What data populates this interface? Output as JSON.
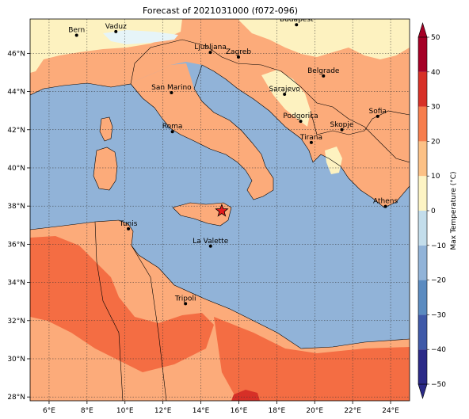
{
  "title": "Forecast of 2021031000 (f072-096)",
  "colorbar": {
    "label": "Max Temperature (°C)",
    "min": -50,
    "max": 50,
    "step": 10,
    "ticks": [
      "50",
      "40",
      "30",
      "20",
      "10",
      "0",
      "−10",
      "−20",
      "−30",
      "−40",
      "−50"
    ],
    "colors": [
      "#2b2a87",
      "#3f59a8",
      "#5b8bc0",
      "#91b3d8",
      "#c3ddeb",
      "#eef6f9",
      "#fdf4c4",
      "#fcc186",
      "#f67d4d",
      "#d73027",
      "#a50026"
    ]
  },
  "axes": {
    "lon_ticks": [
      "6°E",
      "8°E",
      "10°E",
      "12°E",
      "14°E",
      "16°E",
      "18°E",
      "20°E",
      "22°E",
      "24°E"
    ],
    "lat_ticks": [
      "46°N",
      "44°N",
      "42°N",
      "40°N",
      "38°N",
      "36°N",
      "34°N",
      "32°N",
      "30°N",
      "28°N"
    ],
    "grid": true
  },
  "map_colors": {
    "sea": "#91b3d8",
    "warm_20_30": "#fcab7a",
    "hot_30_40": "#f46d43",
    "very_hot_40_50": "#d73027",
    "mild_10_20": "#fdf2c0",
    "cool_0_10": "#e6f4f8"
  },
  "cities": [
    {
      "name": "Bern",
      "lon": 7.45,
      "lat": 46.95
    },
    {
      "name": "Vaduz",
      "lon": 9.52,
      "lat": 47.14
    },
    {
      "name": "Budapest",
      "lon": 19.04,
      "lat": 47.5
    },
    {
      "name": "Ljubljana",
      "lon": 14.5,
      "lat": 46.05
    },
    {
      "name": "Zagreb",
      "lon": 15.98,
      "lat": 45.81
    },
    {
      "name": "Belgrade",
      "lon": 20.46,
      "lat": 44.82
    },
    {
      "name": "San Marino",
      "lon": 12.45,
      "lat": 43.94
    },
    {
      "name": "Sarajevo",
      "lon": 18.41,
      "lat": 43.86
    },
    {
      "name": "Sofia",
      "lon": 23.32,
      "lat": 42.7
    },
    {
      "name": "Podgorica",
      "lon": 19.26,
      "lat": 42.44
    },
    {
      "name": "Skopje",
      "lon": 21.43,
      "lat": 42.0
    },
    {
      "name": "Roma",
      "lon": 12.5,
      "lat": 41.9
    },
    {
      "name": "Tirana",
      "lon": 19.82,
      "lat": 41.33
    },
    {
      "name": "Athens",
      "lon": 23.73,
      "lat": 37.98
    },
    {
      "name": "Tunis",
      "lon": 10.18,
      "lat": 36.81
    },
    {
      "name": "La Valette",
      "lon": 14.51,
      "lat": 35.9
    },
    {
      "name": "Tripoli",
      "lon": 13.19,
      "lat": 32.89
    }
  ],
  "marker": {
    "type": "star",
    "lon": 15.1,
    "lat": 37.75,
    "color": "#e31a1c"
  }
}
